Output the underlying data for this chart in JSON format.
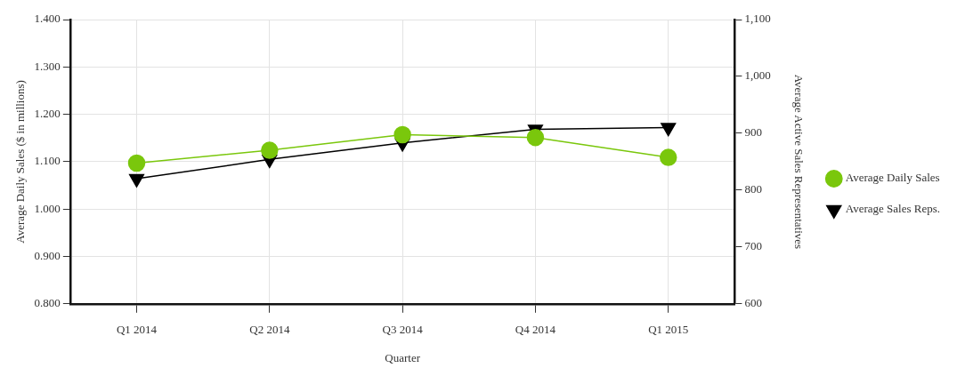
{
  "chart_data": {
    "type": "line",
    "xlabel": "Quarter",
    "ylabel": "Average Daily Sales ($ in millions)",
    "y2label": "Average Active Sales Representatives",
    "categories": [
      "Q1 2014",
      "Q2 2014",
      "Q3 2014",
      "Q4 2014",
      "Q1 2015"
    ],
    "series": [
      {
        "name": "Average Daily Sales",
        "color": "#7ac70c",
        "marker": "circle",
        "values": [
          1.097,
          1.124,
          1.157,
          1.151,
          1.109
        ]
      },
      {
        "name": "Average Sales Reps.",
        "color": "#000000",
        "marker": "triangle",
        "axis": "y2",
        "values": [
          820,
          854,
          883,
          907,
          910
        ]
      }
    ],
    "ylim": [
      0.8,
      1.4
    ],
    "yticks": [
      {
        "value": 0.8,
        "label": "0.800"
      },
      {
        "value": 0.9,
        "label": "0.900"
      },
      {
        "value": 1.0,
        "label": "1.000"
      },
      {
        "value": 1.1,
        "label": "1.100"
      },
      {
        "value": 1.2,
        "label": "1.200"
      },
      {
        "value": 1.3,
        "label": "1.300"
      },
      {
        "value": 1.4,
        "label": "1.400"
      }
    ],
    "y2lim": [
      600,
      1100
    ],
    "y2ticks": [
      600,
      700,
      800,
      900,
      {
        "value": 1000,
        "label": "1,000"
      },
      {
        "value": 1100,
        "label": "1,100"
      }
    ],
    "grid": true,
    "legend": "right",
    "line_style": "solid"
  }
}
